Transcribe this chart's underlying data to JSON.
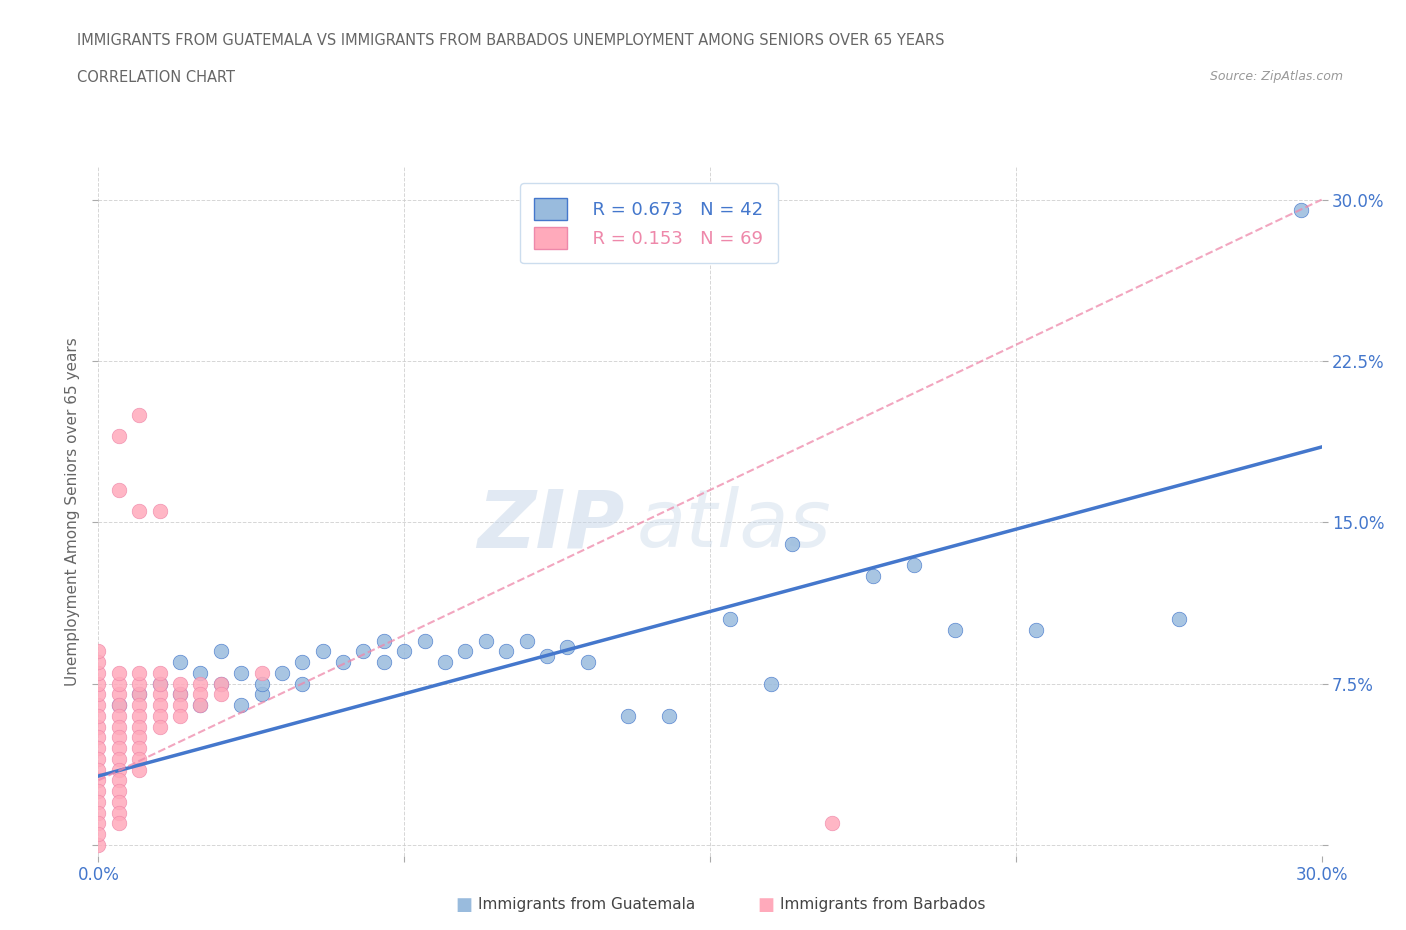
{
  "title_line1": "IMMIGRANTS FROM GUATEMALA VS IMMIGRANTS FROM BARBADOS UNEMPLOYMENT AMONG SENIORS OVER 65 YEARS",
  "title_line2": "CORRELATION CHART",
  "source": "Source: ZipAtlas.com",
  "ylabel": "Unemployment Among Seniors over 65 years",
  "xlim": [
    0.0,
    0.3
  ],
  "ylim": [
    -0.005,
    0.315
  ],
  "xticks": [
    0.0,
    0.075,
    0.15,
    0.225,
    0.3
  ],
  "yticks": [
    0.0,
    0.075,
    0.15,
    0.225,
    0.3
  ],
  "watermark_top": "ZIP",
  "watermark_bot": "atlas",
  "color_blue": "#99BBDD",
  "color_pink": "#FFAABB",
  "color_blue_dark": "#4477CC",
  "color_pink_dark": "#EE88AA",
  "trendline_blue": [
    [
      0.0,
      0.032
    ],
    [
      0.3,
      0.185
    ]
  ],
  "trendline_pink": [
    [
      0.0,
      0.03
    ],
    [
      0.3,
      0.3
    ]
  ],
  "scatter_blue": [
    [
      0.005,
      0.065
    ],
    [
      0.01,
      0.07
    ],
    [
      0.015,
      0.075
    ],
    [
      0.02,
      0.07
    ],
    [
      0.02,
      0.085
    ],
    [
      0.025,
      0.065
    ],
    [
      0.025,
      0.08
    ],
    [
      0.03,
      0.075
    ],
    [
      0.03,
      0.09
    ],
    [
      0.035,
      0.065
    ],
    [
      0.035,
      0.08
    ],
    [
      0.04,
      0.07
    ],
    [
      0.04,
      0.075
    ],
    [
      0.045,
      0.08
    ],
    [
      0.05,
      0.085
    ],
    [
      0.05,
      0.075
    ],
    [
      0.055,
      0.09
    ],
    [
      0.06,
      0.085
    ],
    [
      0.065,
      0.09
    ],
    [
      0.07,
      0.085
    ],
    [
      0.07,
      0.095
    ],
    [
      0.075,
      0.09
    ],
    [
      0.08,
      0.095
    ],
    [
      0.085,
      0.085
    ],
    [
      0.09,
      0.09
    ],
    [
      0.095,
      0.095
    ],
    [
      0.1,
      0.09
    ],
    [
      0.105,
      0.095
    ],
    [
      0.11,
      0.088
    ],
    [
      0.115,
      0.092
    ],
    [
      0.12,
      0.085
    ],
    [
      0.13,
      0.06
    ],
    [
      0.14,
      0.06
    ],
    [
      0.155,
      0.105
    ],
    [
      0.165,
      0.075
    ],
    [
      0.17,
      0.14
    ],
    [
      0.19,
      0.125
    ],
    [
      0.2,
      0.13
    ],
    [
      0.21,
      0.1
    ],
    [
      0.23,
      0.1
    ],
    [
      0.265,
      0.105
    ],
    [
      0.295,
      0.295
    ]
  ],
  "scatter_pink": [
    [
      0.0,
      0.065
    ],
    [
      0.0,
      0.055
    ],
    [
      0.0,
      0.07
    ],
    [
      0.0,
      0.075
    ],
    [
      0.0,
      0.06
    ],
    [
      0.0,
      0.05
    ],
    [
      0.0,
      0.08
    ],
    [
      0.0,
      0.045
    ],
    [
      0.0,
      0.04
    ],
    [
      0.0,
      0.035
    ],
    [
      0.0,
      0.03
    ],
    [
      0.0,
      0.025
    ],
    [
      0.0,
      0.02
    ],
    [
      0.0,
      0.015
    ],
    [
      0.0,
      0.01
    ],
    [
      0.005,
      0.07
    ],
    [
      0.005,
      0.065
    ],
    [
      0.005,
      0.075
    ],
    [
      0.005,
      0.06
    ],
    [
      0.005,
      0.055
    ],
    [
      0.005,
      0.05
    ],
    [
      0.005,
      0.08
    ],
    [
      0.005,
      0.045
    ],
    [
      0.005,
      0.04
    ],
    [
      0.005,
      0.035
    ],
    [
      0.005,
      0.03
    ],
    [
      0.005,
      0.025
    ],
    [
      0.005,
      0.02
    ],
    [
      0.005,
      0.015
    ],
    [
      0.005,
      0.01
    ],
    [
      0.01,
      0.07
    ],
    [
      0.01,
      0.065
    ],
    [
      0.01,
      0.075
    ],
    [
      0.01,
      0.06
    ],
    [
      0.01,
      0.055
    ],
    [
      0.01,
      0.05
    ],
    [
      0.01,
      0.08
    ],
    [
      0.01,
      0.045
    ],
    [
      0.01,
      0.04
    ],
    [
      0.01,
      0.035
    ],
    [
      0.015,
      0.07
    ],
    [
      0.015,
      0.065
    ],
    [
      0.015,
      0.075
    ],
    [
      0.015,
      0.06
    ],
    [
      0.015,
      0.08
    ],
    [
      0.015,
      0.055
    ],
    [
      0.02,
      0.07
    ],
    [
      0.02,
      0.065
    ],
    [
      0.02,
      0.075
    ],
    [
      0.02,
      0.06
    ],
    [
      0.025,
      0.075
    ],
    [
      0.025,
      0.07
    ],
    [
      0.025,
      0.065
    ],
    [
      0.03,
      0.075
    ],
    [
      0.03,
      0.07
    ],
    [
      0.04,
      0.08
    ],
    [
      0.005,
      0.165
    ],
    [
      0.01,
      0.155
    ],
    [
      0.005,
      0.19
    ],
    [
      0.01,
      0.2
    ],
    [
      0.015,
      0.155
    ],
    [
      0.0,
      0.0
    ],
    [
      0.0,
      0.005
    ],
    [
      0.0,
      0.085
    ],
    [
      0.18,
      0.01
    ],
    [
      0.0,
      0.09
    ]
  ],
  "grid_color": "#CCCCCC",
  "bg_color": "#FFFFFF",
  "title_color": "#666666",
  "source_color": "#999999"
}
